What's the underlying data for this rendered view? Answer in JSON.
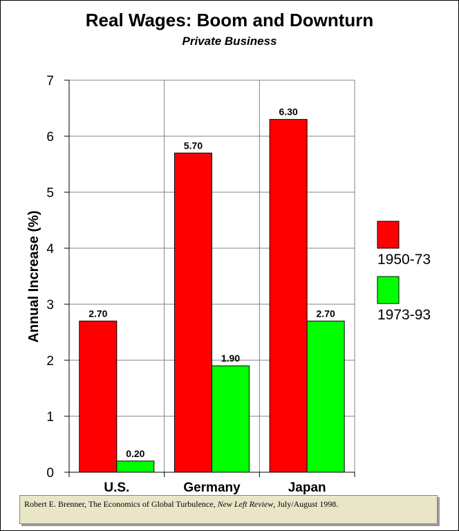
{
  "chart_data": {
    "type": "bar",
    "title": "Real Wages: Boom and Downturn",
    "subtitle": "Private Business",
    "ylabel": "Annual Increase (%)",
    "xlabel": "",
    "categories": [
      "U.S.",
      "Germany",
      "Japan"
    ],
    "series": [
      {
        "name": "1950-73",
        "color": "#ff0000",
        "values": [
          2.7,
          5.7,
          6.3
        ],
        "labels": [
          "2.70",
          "5.70",
          "6.30"
        ]
      },
      {
        "name": "1973-93",
        "color": "#00ff00",
        "values": [
          0.2,
          1.9,
          2.7
        ],
        "labels": [
          "0.20",
          "1.90",
          "2.70"
        ]
      }
    ],
    "ylim": [
      0,
      7
    ],
    "yticks": [
      "0",
      "1",
      "2",
      "3",
      "4",
      "5",
      "6",
      "7"
    ],
    "grid": true,
    "legend_position": "right"
  },
  "source": {
    "pre": "Robert E. Brenner, The Economics of Global Turbulence, ",
    "journal": "New Left Review",
    "post": ", July/August 1998."
  }
}
